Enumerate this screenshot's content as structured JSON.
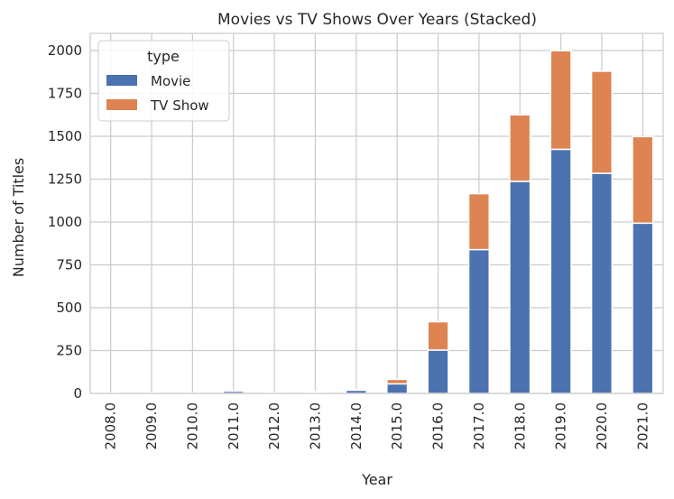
{
  "chart_data": {
    "type": "bar",
    "stacked": true,
    "title": "Movies vs TV Shows Over Years (Stacked)",
    "xlabel": "Year",
    "ylabel": "Number of Titles",
    "categories": [
      "2008.0",
      "2009.0",
      "2010.0",
      "2011.0",
      "2012.0",
      "2013.0",
      "2014.0",
      "2015.0",
      "2016.0",
      "2017.0",
      "2018.0",
      "2019.0",
      "2020.0",
      "2021.0"
    ],
    "series": [
      {
        "name": "Movie",
        "color": "#4c72b0",
        "values": [
          1,
          2,
          1,
          13,
          3,
          6,
          19,
          56,
          253,
          839,
          1237,
          1424,
          1284,
          993
        ]
      },
      {
        "name": "TV Show",
        "color": "#dd8452",
        "values": [
          1,
          0,
          0,
          0,
          0,
          5,
          5,
          26,
          165,
          326,
          388,
          575,
          595,
          505
        ]
      }
    ],
    "ylim": [
      0,
      2100
    ],
    "yticks": [
      0,
      250,
      500,
      750,
      1000,
      1250,
      1500,
      1750,
      2000
    ],
    "grid": true,
    "legend": {
      "title": "type",
      "position": "top-left"
    }
  }
}
